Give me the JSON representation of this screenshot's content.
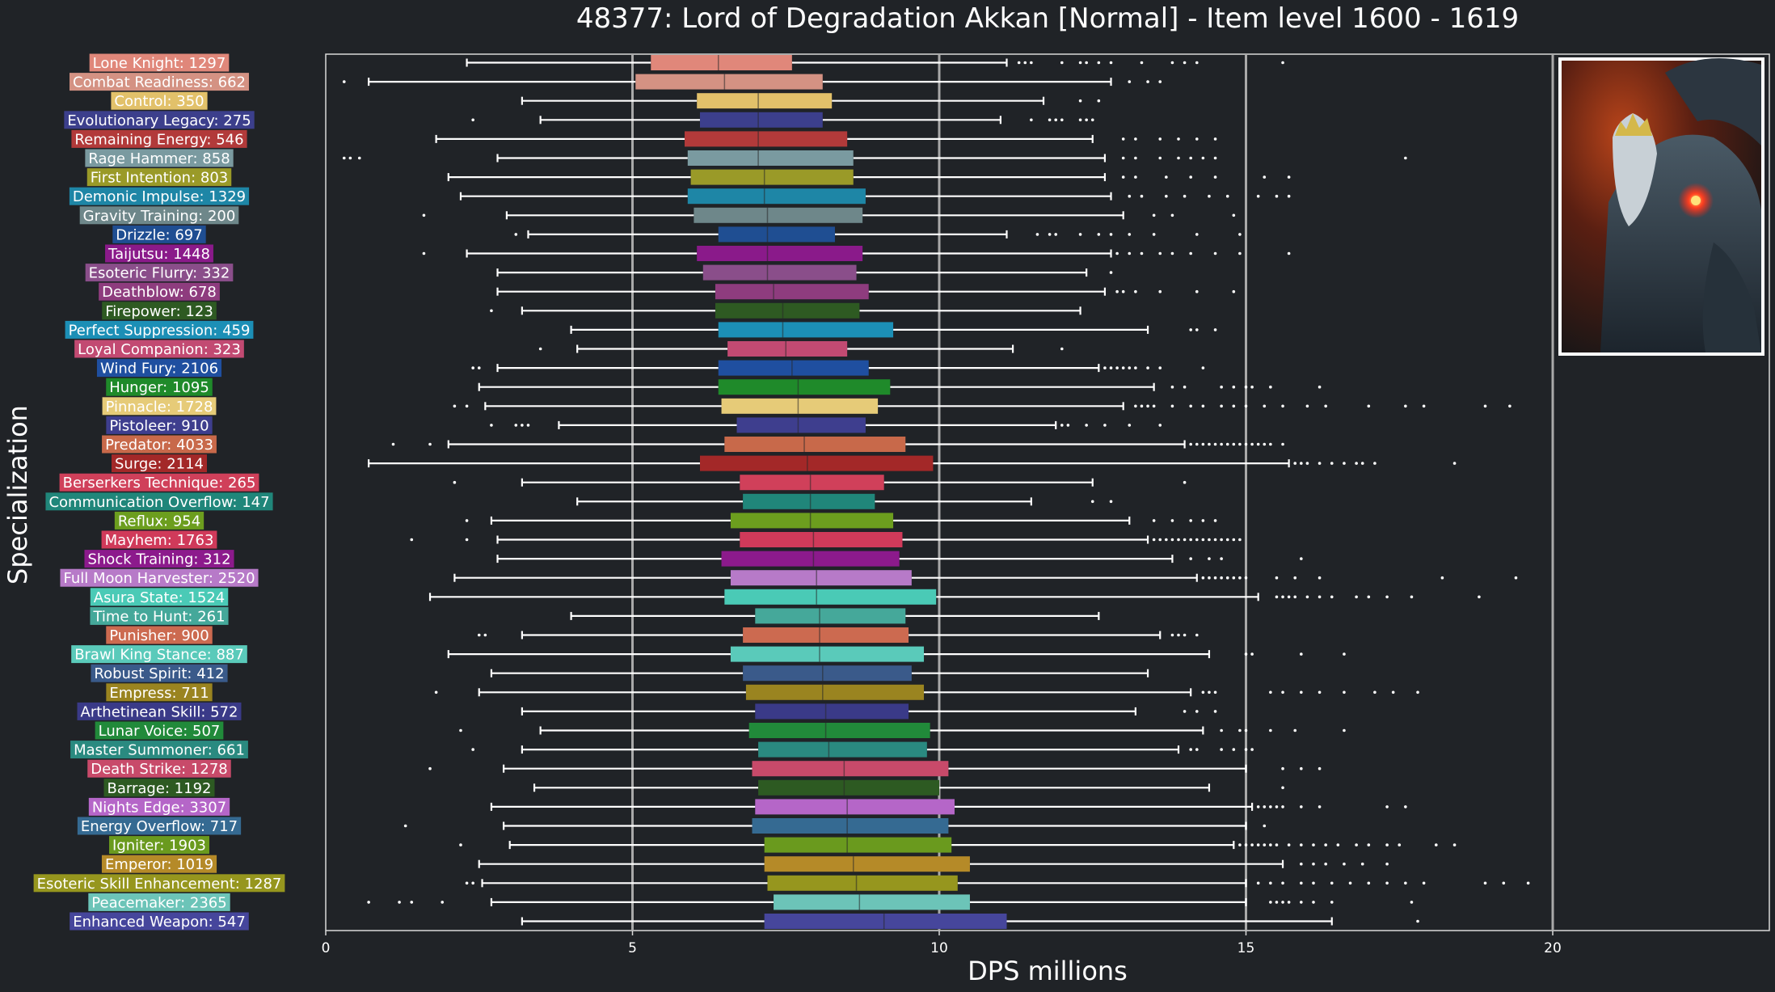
{
  "chart_data": {
    "type": "box",
    "title": "48377: Lord of Degradation Akkan [Normal] - Item level 1600 - 1619",
    "xlabel": "DPS millions",
    "ylabel": "Specialization",
    "xlim": [
      0,
      23.5
    ],
    "xticks": [
      0,
      5,
      10,
      15,
      20
    ],
    "vlines": [
      5,
      10,
      15,
      20
    ],
    "grid": false,
    "categories": [
      {
        "label": "Lone Knight: 1297",
        "color": "#E0877A",
        "whislo": 2.3,
        "q1": 5.3,
        "med": 6.4,
        "q3": 7.6,
        "whishi": 11.1,
        "outliers": [
          11.3,
          11.4,
          11.5,
          12.0,
          12.3,
          12.4,
          12.6,
          12.8,
          13.3,
          13.8,
          14.0,
          14.2,
          15.6
        ]
      },
      {
        "label": "Combat Readiness: 662",
        "color": "#D49283",
        "whislo": 0.7,
        "q1": 5.05,
        "med": 6.5,
        "q3": 8.1,
        "whishi": 12.8,
        "outliers": [
          0.3,
          13.1,
          13.4,
          13.6
        ]
      },
      {
        "label": "Control: 350",
        "color": "#E2C16A",
        "whislo": 3.2,
        "q1": 6.05,
        "med": 7.05,
        "q3": 8.25,
        "whishi": 11.7,
        "outliers": [
          12.3,
          12.6
        ]
      },
      {
        "label": "Evolutionary Legacy: 275",
        "color": "#3C3F8C",
        "whislo": 3.5,
        "q1": 6.1,
        "med": 7.05,
        "q3": 8.1,
        "whishi": 11.0,
        "outliers": [
          2.4,
          11.5,
          11.8,
          11.9,
          12.0,
          12.3,
          12.4,
          12.5
        ]
      },
      {
        "label": "Remaining Energy: 546",
        "color": "#B23A3A",
        "whislo": 1.8,
        "q1": 5.85,
        "med": 7.05,
        "q3": 8.5,
        "whishi": 12.5,
        "outliers": [
          13.0,
          13.2,
          13.6,
          13.9,
          14.2,
          14.5
        ]
      },
      {
        "label": "Rage Hammer: 858",
        "color": "#7A9AA0",
        "whislo": 2.8,
        "q1": 5.9,
        "med": 7.05,
        "q3": 8.6,
        "whishi": 12.7,
        "outliers": [
          0.3,
          0.4,
          0.55,
          13.0,
          13.2,
          13.6,
          13.9,
          14.1,
          14.3,
          14.5,
          17.6
        ]
      },
      {
        "label": "First Intention: 803",
        "color": "#9A9A28",
        "whislo": 2.0,
        "q1": 5.95,
        "med": 7.15,
        "q3": 8.6,
        "whishi": 12.7,
        "outliers": [
          13.0,
          13.2,
          13.7,
          14.1,
          14.5,
          15.3,
          15.7
        ]
      },
      {
        "label": "Demonic Impulse: 1329",
        "color": "#1E86A6",
        "whislo": 2.2,
        "q1": 5.9,
        "med": 7.15,
        "q3": 8.8,
        "whishi": 12.8,
        "outliers": [
          13.1,
          13.3,
          13.7,
          14.0,
          14.4,
          14.7,
          15.2,
          15.5,
          15.7
        ]
      },
      {
        "label": "Gravity Training: 200",
        "color": "#6E878A",
        "whislo": 2.95,
        "q1": 6.0,
        "med": 7.2,
        "q3": 8.75,
        "whishi": 13.0,
        "outliers": [
          1.6,
          13.5,
          13.8,
          14.8
        ]
      },
      {
        "label": "Drizzle: 697",
        "color": "#1F4E92",
        "whislo": 3.3,
        "q1": 6.4,
        "med": 7.2,
        "q3": 8.3,
        "whishi": 11.1,
        "outliers": [
          3.1,
          11.6,
          11.8,
          11.9,
          12.3,
          12.6,
          12.8,
          13.1,
          13.5,
          14.2,
          14.9
        ]
      },
      {
        "label": "Taijutsu: 1448",
        "color": "#8A1A8A",
        "whislo": 2.3,
        "q1": 6.05,
        "med": 7.2,
        "q3": 8.75,
        "whishi": 12.8,
        "outliers": [
          1.6,
          12.9,
          13.1,
          13.3,
          13.6,
          13.8,
          14.1,
          14.5,
          14.9,
          15.7
        ]
      },
      {
        "label": "Esoteric Flurry: 332",
        "color": "#8A4E8A",
        "whislo": 2.8,
        "q1": 6.15,
        "med": 7.2,
        "q3": 8.65,
        "whishi": 12.4,
        "outliers": [
          12.8
        ]
      },
      {
        "label": "Deathblow: 678",
        "color": "#8E3C7E",
        "whislo": 2.8,
        "q1": 6.35,
        "med": 7.3,
        "q3": 8.85,
        "whishi": 12.7,
        "outliers": [
          12.9,
          13.0,
          13.2,
          13.6,
          14.2,
          14.8
        ]
      },
      {
        "label": "Firepower: 123",
        "color": "#2E5A22",
        "whislo": 3.2,
        "q1": 6.35,
        "med": 7.45,
        "q3": 8.7,
        "whishi": 12.3,
        "outliers": [
          2.7
        ]
      },
      {
        "label": "Perfect Suppression: 459",
        "color": "#1C8FB6",
        "whislo": 4.0,
        "q1": 6.4,
        "med": 7.45,
        "q3": 9.25,
        "whishi": 13.4,
        "outliers": [
          14.1,
          14.2,
          14.5
        ]
      },
      {
        "label": "Loyal Companion: 323",
        "color": "#C24A72",
        "whislo": 4.1,
        "q1": 6.55,
        "med": 7.5,
        "q3": 8.5,
        "whishi": 11.2,
        "outliers": [
          3.5,
          12.0
        ]
      },
      {
        "label": "Wind Fury: 2106",
        "color": "#1F4FA0",
        "whislo": 2.8,
        "q1": 6.4,
        "med": 7.6,
        "q3": 8.85,
        "whishi": 12.6,
        "outliers": [
          2.4,
          2.5,
          12.7,
          12.8,
          12.9,
          13.0,
          13.1,
          13.2,
          13.4,
          13.6,
          14.3
        ]
      },
      {
        "label": "Hunger: 1095",
        "color": "#1F8A2A",
        "whislo": 2.5,
        "q1": 6.4,
        "med": 7.7,
        "q3": 9.2,
        "whishi": 13.5,
        "outliers": [
          13.8,
          14.0,
          14.6,
          14.8,
          15.0,
          15.1,
          15.4,
          16.2
        ]
      },
      {
        "label": "Pinnacle: 1728",
        "color": "#E6CB78",
        "whislo": 2.6,
        "q1": 6.45,
        "med": 7.7,
        "q3": 9.0,
        "whishi": 13.0,
        "outliers": [
          2.1,
          2.3,
          13.2,
          13.3,
          13.4,
          13.5,
          13.8,
          14.1,
          14.3,
          14.6,
          14.8,
          15.0,
          15.3,
          15.6,
          16.0,
          16.3,
          17.0,
          17.6,
          17.9,
          18.9,
          19.3
        ]
      },
      {
        "label": "Pistoleer: 910",
        "color": "#3E3E8E",
        "whislo": 3.8,
        "q1": 6.7,
        "med": 7.7,
        "q3": 8.8,
        "whishi": 11.9,
        "outliers": [
          2.7,
          3.1,
          3.2,
          3.3,
          12.0,
          12.1,
          12.4,
          12.7,
          13.1,
          13.6
        ]
      },
      {
        "label": "Predator: 4033",
        "color": "#C8694A",
        "whislo": 2.0,
        "q1": 6.5,
        "med": 7.8,
        "q3": 9.45,
        "whishi": 14.0,
        "outliers": [
          1.1,
          1.7,
          14.1,
          14.2,
          14.3,
          14.4,
          14.5,
          14.6,
          14.7,
          14.8,
          14.9,
          15.0,
          15.1,
          15.2,
          15.3,
          15.4,
          15.6
        ]
      },
      {
        "label": "Surge: 2114",
        "color": "#A32828",
        "whislo": 0.7,
        "q1": 6.1,
        "med": 7.85,
        "q3": 9.9,
        "whishi": 15.7,
        "outliers": [
          15.8,
          15.9,
          16.0,
          16.2,
          16.4,
          16.6,
          16.8,
          16.9,
          17.1,
          18.4
        ]
      },
      {
        "label": "Berserkers Technique: 265",
        "color": "#D0405A",
        "whislo": 3.2,
        "q1": 6.75,
        "med": 7.9,
        "q3": 9.1,
        "whishi": 12.5,
        "outliers": [
          2.1,
          14.0
        ]
      },
      {
        "label": "Communication Overflow: 147",
        "color": "#20867A",
        "whislo": 4.1,
        "q1": 6.8,
        "med": 7.9,
        "q3": 8.95,
        "whishi": 11.5,
        "outliers": [
          12.5,
          12.8
        ]
      },
      {
        "label": "Reflux: 954",
        "color": "#6C9E1E",
        "whislo": 2.7,
        "q1": 6.6,
        "med": 7.9,
        "q3": 9.25,
        "whishi": 13.1,
        "outliers": [
          2.3,
          13.5,
          13.8,
          14.1,
          14.3,
          14.5
        ]
      },
      {
        "label": "Mayhem: 1763",
        "color": "#D03A5A",
        "whislo": 2.8,
        "q1": 6.75,
        "med": 7.95,
        "q3": 9.4,
        "whishi": 13.4,
        "outliers": [
          1.4,
          2.3,
          13.5,
          13.6,
          13.7,
          13.8,
          13.9,
          14.0,
          14.1,
          14.2,
          14.3,
          14.4,
          14.5,
          14.6,
          14.7,
          14.8,
          14.9
        ]
      },
      {
        "label": "Shock Training: 312",
        "color": "#8C1A8C",
        "whislo": 2.8,
        "q1": 6.45,
        "med": 7.95,
        "q3": 9.35,
        "whishi": 13.8,
        "outliers": [
          14.1,
          14.4,
          14.6,
          15.9
        ]
      },
      {
        "label": "Full Moon Harvester: 2520",
        "color": "#B77AC8",
        "whislo": 2.1,
        "q1": 6.6,
        "med": 8.0,
        "q3": 9.55,
        "whishi": 14.2,
        "outliers": [
          14.3,
          14.4,
          14.5,
          14.6,
          14.7,
          14.8,
          14.9,
          15.0,
          15.5,
          15.8,
          16.2,
          18.2,
          19.4
        ]
      },
      {
        "label": "Asura State: 1524",
        "color": "#4ACAB6",
        "whislo": 1.7,
        "q1": 6.5,
        "med": 8.0,
        "q3": 9.95,
        "whishi": 15.2,
        "outliers": [
          15.5,
          15.6,
          15.7,
          15.8,
          16.0,
          16.2,
          16.4,
          16.8,
          17.0,
          17.3,
          17.7,
          18.8
        ]
      },
      {
        "label": "Time to Hunt: 261",
        "color": "#45A89A",
        "whislo": 4.0,
        "q1": 7.0,
        "med": 8.05,
        "q3": 9.45,
        "whishi": 12.6,
        "outliers": []
      },
      {
        "label": "Punisher: 900",
        "color": "#CC6A50",
        "whislo": 3.2,
        "q1": 6.8,
        "med": 8.05,
        "q3": 9.5,
        "whishi": 13.6,
        "outliers": [
          2.5,
          2.6,
          13.8,
          13.9,
          14.0,
          14.2
        ]
      },
      {
        "label": "Brawl King Stance: 887",
        "color": "#5ACABA",
        "whislo": 2.0,
        "q1": 6.6,
        "med": 8.05,
        "q3": 9.75,
        "whishi": 14.4,
        "outliers": [
          15.0,
          15.1,
          15.9,
          16.6
        ]
      },
      {
        "label": "Robust Spirit: 412",
        "color": "#3A5A8A",
        "whislo": 2.7,
        "q1": 6.8,
        "med": 8.1,
        "q3": 9.55,
        "whishi": 13.4,
        "outliers": []
      },
      {
        "label": "Empress: 711",
        "color": "#9A8420",
        "whislo": 2.5,
        "q1": 6.85,
        "med": 8.1,
        "q3": 9.75,
        "whishi": 14.1,
        "outliers": [
          1.8,
          14.3,
          14.4,
          14.5,
          15.4,
          15.6,
          15.9,
          16.2,
          16.6,
          17.1,
          17.4,
          17.8
        ]
      },
      {
        "label": "Arthetinean Skill: 572",
        "color": "#3A3A88",
        "whislo": 3.2,
        "q1": 7.0,
        "med": 8.15,
        "q3": 9.5,
        "whishi": 13.2,
        "outliers": [
          14.0,
          14.2,
          14.5
        ]
      },
      {
        "label": "Lunar Voice: 507",
        "color": "#218A3A",
        "whislo": 3.5,
        "q1": 6.9,
        "med": 8.15,
        "q3": 9.85,
        "whishi": 14.3,
        "outliers": [
          2.2,
          14.6,
          14.9,
          15.0,
          15.4,
          15.8,
          16.6
        ]
      },
      {
        "label": "Master Summoner: 661",
        "color": "#2A8A80",
        "whislo": 3.2,
        "q1": 7.05,
        "med": 8.2,
        "q3": 9.8,
        "whishi": 13.9,
        "outliers": [
          2.4,
          14.1,
          14.2,
          14.6,
          14.8,
          15.0,
          15.1
        ]
      },
      {
        "label": "Death Strike: 1278",
        "color": "#C84A6A",
        "whislo": 2.9,
        "q1": 6.95,
        "med": 8.45,
        "q3": 10.15,
        "whishi": 15.0,
        "outliers": [
          1.7,
          15.6,
          15.9,
          16.2
        ]
      },
      {
        "label": "Barrage: 1192",
        "color": "#2D5A22",
        "whislo": 3.4,
        "q1": 7.05,
        "med": 8.45,
        "q3": 10.0,
        "whishi": 14.4,
        "outliers": [
          15.6
        ]
      },
      {
        "label": "Nights Edge: 3307",
        "color": "#B566C8",
        "whislo": 2.7,
        "q1": 7.0,
        "med": 8.5,
        "q3": 10.25,
        "whishi": 15.1,
        "outliers": [
          15.2,
          15.3,
          15.4,
          15.5,
          15.6,
          15.9,
          16.2,
          17.3,
          17.6
        ]
      },
      {
        "label": "Energy Overflow: 717",
        "color": "#356A92",
        "whislo": 2.9,
        "q1": 6.95,
        "med": 8.5,
        "q3": 10.15,
        "whishi": 15.0,
        "outliers": [
          1.3,
          15.3
        ]
      },
      {
        "label": "Igniter: 1903",
        "color": "#6A9A1E",
        "whislo": 3.0,
        "q1": 7.15,
        "med": 8.5,
        "q3": 10.2,
        "whishi": 14.8,
        "outliers": [
          2.2,
          14.9,
          15.0,
          15.1,
          15.2,
          15.3,
          15.4,
          15.5,
          15.7,
          15.9,
          16.1,
          16.3,
          16.5,
          16.8,
          17.0,
          17.3,
          17.5,
          18.1,
          18.4
        ]
      },
      {
        "label": "Emperor: 1019",
        "color": "#B58A28",
        "whislo": 2.5,
        "q1": 7.15,
        "med": 8.6,
        "q3": 10.5,
        "whishi": 15.6,
        "outliers": [
          15.9,
          16.1,
          16.3,
          16.6,
          16.9,
          17.3
        ]
      },
      {
        "label": "Esoteric Skill Enhancement: 1287",
        "color": "#96961E",
        "whislo": 2.55,
        "q1": 7.2,
        "med": 8.65,
        "q3": 10.3,
        "whishi": 15.0,
        "outliers": [
          2.3,
          2.4,
          15.2,
          15.4,
          15.6,
          15.9,
          16.1,
          16.4,
          16.7,
          17.0,
          17.3,
          17.6,
          17.9,
          18.9,
          19.2,
          19.6
        ]
      },
      {
        "label": "Peacemaker: 2365",
        "color": "#6CC4B8",
        "whislo": 2.7,
        "q1": 7.3,
        "med": 8.7,
        "q3": 10.5,
        "whishi": 15.0,
        "outliers": [
          0.7,
          1.2,
          1.4,
          1.9,
          15.4,
          15.5,
          15.6,
          15.7,
          15.9,
          16.1,
          16.4,
          17.7
        ]
      },
      {
        "label": "Enhanced Weapon: 547",
        "color": "#46469C",
        "whislo": 3.2,
        "q1": 7.15,
        "med": 9.1,
        "q3": 11.1,
        "whishi": 16.4,
        "outliers": [
          17.8
        ]
      }
    ]
  }
}
